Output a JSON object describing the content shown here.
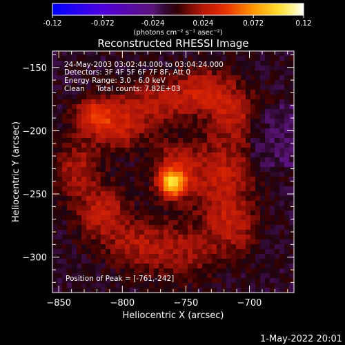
{
  "chart_data": {
    "type": "heatmap",
    "title": "Reconstructed RHESSI Image",
    "xlabel": "Heliocentric X (arcsec)",
    "ylabel": "Heliocentric Y (arcsec)",
    "xlim": [
      -855,
      -665
    ],
    "ylim": [
      -328,
      -137
    ],
    "x_ticks": [
      -850,
      -800,
      -750,
      -700
    ],
    "y_ticks": [
      -150,
      -200,
      -250,
      -300
    ],
    "colorbar": {
      "range": [
        -0.12,
        0.12
      ],
      "ticks": [
        "-0.12",
        "-0.072",
        "-0.024",
        "0.024",
        "0.072",
        "0.12"
      ],
      "unit_label": "(photons cm⁻² s⁻¹ asec⁻²)"
    },
    "annotations": [
      "24-May-2003 03:02:44.000 to 03:04:24.000",
      "Detectors: 3F 4F 5F 6F 7F 8F, Att 0",
      "Energy Range: 3.0 - 6.0 keV",
      "Clean     Total counts: 7.82E+03"
    ],
    "peak_label": "Position of Peak = [-761,-242]",
    "peak": {
      "x": -761,
      "y": -242,
      "value": 0.12
    },
    "blobs": [
      {
        "x": -761,
        "y": -242,
        "sx": 7,
        "sy": 7,
        "amp": 0.075
      },
      {
        "x": -758,
        "y": -232,
        "sx": 12,
        "sy": 14,
        "amp": 0.04
      },
      {
        "x": -822,
        "y": -188,
        "sx": 10,
        "sy": 9,
        "amp": 0.045
      },
      {
        "x": -802,
        "y": -195,
        "sx": 16,
        "sy": 14,
        "amp": 0.035
      },
      {
        "x": -770,
        "y": -178,
        "sx": 18,
        "sy": 12,
        "amp": 0.03
      },
      {
        "x": -735,
        "y": -168,
        "sx": 16,
        "sy": 12,
        "amp": 0.035
      },
      {
        "x": -712,
        "y": -188,
        "sx": 14,
        "sy": 14,
        "amp": 0.03
      },
      {
        "x": -722,
        "y": -235,
        "sx": 16,
        "sy": 20,
        "amp": 0.035
      },
      {
        "x": -715,
        "y": -275,
        "sx": 14,
        "sy": 16,
        "amp": 0.03
      },
      {
        "x": -755,
        "y": -295,
        "sx": 20,
        "sy": 16,
        "amp": 0.025
      },
      {
        "x": -815,
        "y": -265,
        "sx": 14,
        "sy": 14,
        "amp": 0.035
      },
      {
        "x": -835,
        "y": -230,
        "sx": 12,
        "sy": 16,
        "amp": 0.03
      },
      {
        "x": -790,
        "y": -290,
        "sx": 16,
        "sy": 12,
        "amp": 0.025
      }
    ],
    "background": -0.008
  },
  "footer": {
    "timestamp": "1-May-2022 20:01"
  }
}
